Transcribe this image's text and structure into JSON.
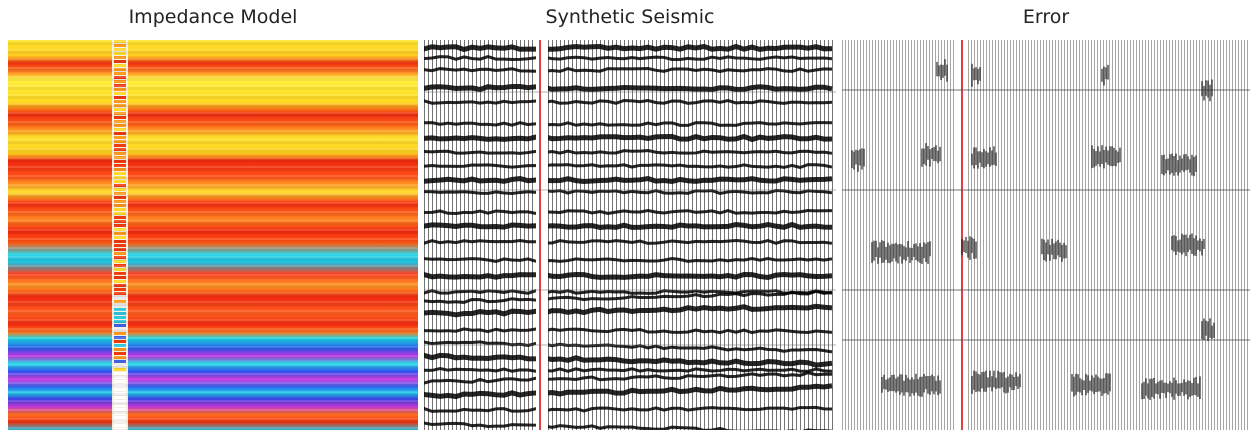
{
  "panels": [
    {
      "title": "Impedance Model"
    },
    {
      "title": "Synthetic Seismic"
    },
    {
      "title": "Error"
    }
  ]
}
